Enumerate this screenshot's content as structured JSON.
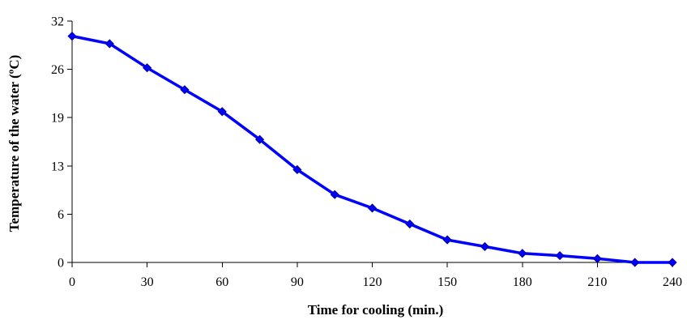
{
  "chart_data": {
    "type": "line",
    "title": "",
    "xlabel": "Time for cooling (min.)",
    "ylabel": "Temperature of the water (ºC)",
    "xlim": [
      0,
      240
    ],
    "ylim": [
      0,
      32
    ],
    "x_ticks": [
      "0",
      "30",
      "60",
      "90",
      "120",
      "150",
      "180",
      "210",
      "240"
    ],
    "y_ticks": [
      "0",
      "6",
      "13",
      "19",
      "26",
      "32"
    ],
    "grid": false,
    "legend": "none",
    "series": [
      {
        "color": "#0000ff",
        "marker": "diamond",
        "x": [
          0,
          15,
          30,
          45,
          60,
          75,
          90,
          105,
          120,
          135,
          150,
          165,
          180,
          195,
          210,
          225,
          240
        ],
        "y": [
          30.0,
          29.0,
          25.8,
          22.9,
          20.0,
          16.3,
          12.3,
          9.0,
          7.2,
          5.1,
          3.0,
          2.1,
          1.2,
          0.9,
          0.5,
          0.0,
          0.0
        ]
      }
    ]
  }
}
